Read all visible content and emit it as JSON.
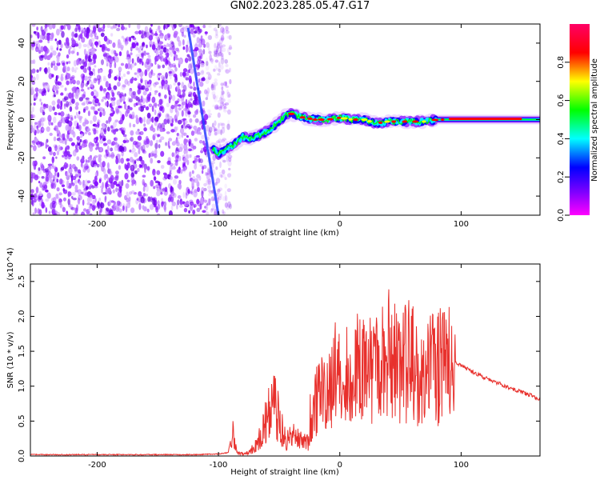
{
  "title": "GN02.2023.285.05.47.G17",
  "chart_data": [
    {
      "type": "heatmap",
      "xlabel": "Height of straight line (km)",
      "ylabel": "Frequency (Hz)",
      "xlim": [
        -255,
        165
      ],
      "ylim": [
        -50,
        50
      ],
      "x_ticks": [
        -200,
        -100,
        0,
        100
      ],
      "y_ticks": [
        -40,
        -20,
        0,
        20,
        40
      ],
      "colorbar": {
        "label": "Normalized spectral amplitude",
        "range": [
          0,
          1
        ],
        "ticks": [
          "0.0",
          "0.2",
          "0.4",
          "0.6",
          "0.8"
        ],
        "colormap": [
          "#ff00ff",
          "#0000ff",
          "#00ffff",
          "#00ff00",
          "#ffff00",
          "#ff0000",
          "#ff0066"
        ]
      },
      "features": {
        "noise_region_x": [
          -255,
          -110
        ],
        "streak_line": {
          "x": [
            -125,
            -100
          ],
          "y": [
            48,
            -50
          ]
        },
        "signal_ridge": {
          "x": [
            -105,
            -100,
            -95,
            -90,
            -85,
            -80,
            -75,
            -70,
            -65,
            -60,
            -55,
            -50,
            -45,
            -40,
            -30,
            -20,
            -10,
            0,
            10,
            20,
            30,
            40,
            50,
            60,
            70,
            80,
            90,
            100,
            120,
            140,
            165
          ],
          "y": [
            -15,
            -18,
            -16,
            -14,
            -12,
            -9,
            -10,
            -9,
            -8,
            -6,
            -4,
            -1,
            2,
            3,
            1,
            0,
            0,
            1,
            0,
            0,
            -2,
            -1,
            -1,
            -1,
            -1,
            0,
            0,
            0,
            0,
            0,
            0
          ]
        }
      }
    },
    {
      "type": "line",
      "xlabel": "Height of straight line (km)",
      "ylabel": "SNR (10 * v/v)",
      "y_scale_label": "(x10^4)",
      "xlim": [
        -255,
        165
      ],
      "ylim": [
        0,
        2.75
      ],
      "x_ticks": [
        -200,
        -100,
        0,
        100
      ],
      "y_ticks": [
        "0.0",
        "0.5",
        "1.0",
        "1.5",
        "2.0",
        "2.5"
      ],
      "series": [
        {
          "color": "#e8302c",
          "x": [
            -255,
            -230,
            -200,
            -160,
            -120,
            -100,
            -92,
            -88,
            -85,
            -80,
            -75,
            -70,
            -65,
            -60,
            -55,
            -50,
            -45,
            -40,
            -35,
            -30,
            -25,
            -20,
            -15,
            -10,
            -5,
            0,
            10,
            20,
            30,
            40,
            50,
            60,
            70,
            80,
            90,
            100,
            110,
            120,
            130,
            140,
            150,
            165
          ],
          "y": [
            0.02,
            0.02,
            0.02,
            0.02,
            0.02,
            0.03,
            0.05,
            0.4,
            0.05,
            0.03,
            0.05,
            0.15,
            0.3,
            0.6,
            0.85,
            0.55,
            0.25,
            0.3,
            0.35,
            0.2,
            0.25,
            0.8,
            0.95,
            1.05,
            1.1,
            1.15,
            1.25,
            1.4,
            1.45,
            1.55,
            1.5,
            1.4,
            1.35,
            1.35,
            1.38,
            1.3,
            1.2,
            1.12,
            1.05,
            0.98,
            0.92,
            0.82
          ]
        }
      ]
    }
  ]
}
